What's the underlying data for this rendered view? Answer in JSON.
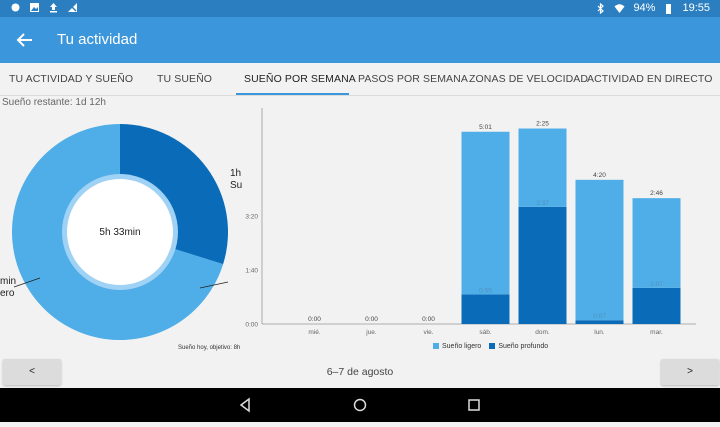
{
  "statusbar": {
    "battery": "94%",
    "time": "19:55"
  },
  "appbar": {
    "title": "Tu actividad"
  },
  "tabs": [
    {
      "label": "TU ACTIVIDAD Y SUEÑO"
    },
    {
      "label": "TU SUEÑO"
    },
    {
      "label": "SUEÑO POR SEMANA"
    },
    {
      "label": "PASOS POR SEMANA"
    },
    {
      "label": "ZONAS DE VELOCIDAD"
    },
    {
      "label": "ACTIVIDAD EN DIRECTO"
    }
  ],
  "remaining_label": "Sueño restante: 1d 12h",
  "donut": {
    "center_text": "5h 33min",
    "deep_label_line1": "1h",
    "deep_label_line2": "Su",
    "light_label_line1": "min",
    "light_label_line2": "ero",
    "goal_text": "Sueño hoy, objetivo: 8h",
    "deep_fraction": 0.298,
    "color_light": "#4faee8",
    "color_deep": "#0a6cb8"
  },
  "chart_data": {
    "type": "bar",
    "stacked": true,
    "categories": [
      "mié.",
      "jue.",
      "vie.",
      "sáb.",
      "dom.",
      "lun.",
      "mar."
    ],
    "y_ticks": [
      "0:00",
      "1:40",
      "3:20"
    ],
    "ylim": [
      0,
      400
    ],
    "series": [
      {
        "name": "Sueño ligero",
        "color": "#4faee8",
        "values": [
          0,
          0,
          0,
          301,
          145,
          260,
          166
        ]
      },
      {
        "name": "Sueño profundo",
        "color": "#0a6cb8",
        "values": [
          0,
          0,
          0,
          55,
          217,
          7,
          67
        ]
      }
    ],
    "top_labels": [
      "0:00",
      "0:00",
      "0:00",
      "5:01",
      "2:25",
      "4:20",
      "2:46"
    ],
    "deep_labels": [
      "",
      "",
      "",
      "0:55",
      "3:37",
      "0:07",
      "1:07"
    ],
    "legend_position": "bottom"
  },
  "footer": {
    "prev": "<",
    "next": ">",
    "date_range": "6–7 de agosto"
  }
}
